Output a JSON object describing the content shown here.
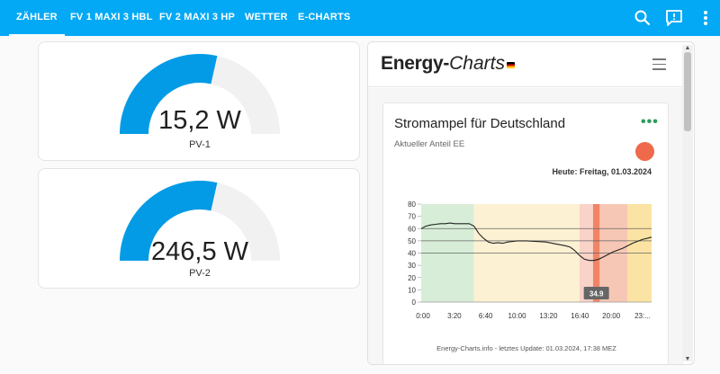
{
  "topbar": {
    "tabs": [
      {
        "label": "Zähler",
        "active": true
      },
      {
        "label": "FV 1 Maxi 3 HBL",
        "active": false
      },
      {
        "label": "FV 2 Maxi 3 HP",
        "active": false
      },
      {
        "label": "Wetter",
        "active": false
      },
      {
        "label": "E-Charts",
        "active": false
      }
    ],
    "icons": [
      "search-icon",
      "chat-icon",
      "more-vert-icon"
    ],
    "color": "#03a9f4"
  },
  "gauges": [
    {
      "value_text": "15,2 W",
      "label": "PV-1",
      "fraction": 0.57
    },
    {
      "value_text": "246,5 W",
      "label": "PV-2",
      "fraction": 0.57
    }
  ],
  "gauge_color": "#039be5",
  "energy_charts": {
    "logo_bold": "Energy-",
    "logo_italic": "Charts",
    "card": {
      "title": "Stromampel für Deutschland",
      "subtitle": "Aktueller Anteil EE",
      "date": "Heute: Freitag, 01.03.2024",
      "footer": "Energy-Charts.info - letztes Update: 01.03.2024, 17:38 MEZ",
      "lamp_color": "#ee6a4a"
    }
  },
  "chart_data": {
    "type": "line",
    "title": "",
    "xlabel": "",
    "ylabel": "",
    "ylim": [
      0,
      80
    ],
    "yticks": [
      0,
      10,
      20,
      30,
      40,
      50,
      60,
      70,
      80
    ],
    "xticks": [
      "0:00",
      "3:20",
      "6:40",
      "10:00",
      "13:20",
      "16:40",
      "20:00",
      "23:..."
    ],
    "reference_lines": [
      60,
      50,
      40
    ],
    "current_value_label": "34.9",
    "current_time_hours": 18.25,
    "bands": [
      {
        "from_h": 0,
        "to_h": 5.5,
        "color": "#d7edd7"
      },
      {
        "from_h": 5.5,
        "to_h": 16.5,
        "color": "#fdf1d3"
      },
      {
        "from_h": 16.5,
        "to_h": 17.9,
        "color": "#f9d2c8"
      },
      {
        "from_h": 17.9,
        "to_h": 18.6,
        "color": "#f08466"
      },
      {
        "from_h": 18.6,
        "to_h": 21.5,
        "color": "#f7c7b5"
      },
      {
        "from_h": 21.5,
        "to_h": 24,
        "color": "#fbe3a3"
      }
    ],
    "series": [
      {
        "x": [
          0,
          0.5,
          1,
          1.5,
          2,
          2.5,
          3,
          3.5,
          4,
          4.5,
          5,
          5.5,
          6,
          6.5,
          7,
          7.5,
          8,
          8.5,
          9,
          10,
          11,
          12,
          13,
          14,
          15,
          15.5,
          16,
          16.5,
          17,
          17.5,
          18,
          18.5,
          19,
          19.5,
          20,
          21,
          22,
          23,
          24
        ],
        "y": [
          60,
          62,
          63,
          63.5,
          64,
          64,
          64.5,
          64,
          64,
          64,
          64,
          62,
          56,
          52,
          49,
          48,
          48.5,
          48,
          49,
          50,
          50,
          49.5,
          49,
          47.5,
          46,
          45,
          42,
          38,
          35,
          34,
          34,
          35,
          37,
          39,
          41,
          44,
          48,
          51,
          53
        ]
      }
    ]
  }
}
